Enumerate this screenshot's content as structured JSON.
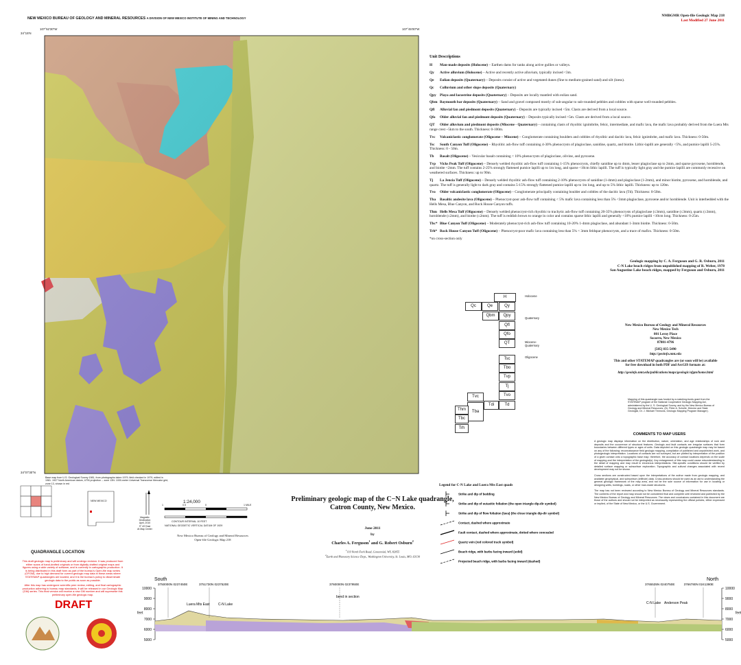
{
  "header": {
    "bureau": "NEW MEXICO BUREAU OF GEOLOGY AND MINERAL RESOURCES",
    "division": "A DIVISION OF NEW MEXICO INSTITUTE OF MINING AND TECHNOLOGY",
    "series": "NMBGMR Open-file Geologic Map 218",
    "modified": "Last Modified 27 June 2011"
  },
  "map_frame": {
    "corners": [
      "34°15'N",
      "107°52'30\"W",
      "107°45'00\"W",
      "34°07'30\"N"
    ],
    "base_note": "Base map from U.S. Geological Survey 1981, from photographs taken 1979, field checked in 1979, edited in 1981. 1927 North American datum, UTM projection -- zone 13N. 1000-meter Universal Transverse Mercator grid, zone 13, shown in red"
  },
  "units": {
    "title": "Unit Descriptions",
    "items": [
      {
        "code": "H",
        "name": "Man-made deposits (Holocene)",
        "text": " – Earthen dams for tanks along active gullies or valleys."
      },
      {
        "code": "Qy",
        "name": "Active alluvium (Holocene)",
        "text": " – Active and recently active alluvium, typically incised <3m."
      },
      {
        "code": "Qe",
        "name": "Eolian deposits (Quaternary)",
        "text": " – Deposits consist of active and vegetated dunes (fine to medium-grained sand) and silt (loess)."
      },
      {
        "code": "Qc",
        "name": "Colluvium and other slope deposits (Quaternary)",
        "text": ""
      },
      {
        "code": "Qpy",
        "name": "Playa and lacustrine deposits (Quaternary)",
        "text": " – Deposits are locally mantled with eolian sand."
      },
      {
        "code": "Qbm",
        "name": "Baymouth bar deposits (Quaternary)",
        "text": " – Sand and gravel composed mostly of sub-angular to sub-rounded pebbles and cobbles with sparse well-rounded pebbles."
      },
      {
        "code": "Qfl",
        "name": "Alluvial fan and piedmont deposits (Quaternary)",
        "text": " – Deposits are typically incised <5m. Clasts are derived from a local source."
      },
      {
        "code": "Qfo",
        "name": "Older alluvial fan and piedmont deposits (Quaternary)",
        "text": " – Deposits typically incised >5m. Clasts are derived from a local source."
      },
      {
        "code": "QT",
        "name": "Older alluvium and piedmont deposits (Miocene - Quaternary)",
        "text": " – containing clasts of rhyolitic ignimbrite, felsic, intermediate, and mafic lava, the mafic lava probably derived from the Luera Mts range crest ~5km to the south. Thickness: 0-100m."
      },
      {
        "code": "Tvc",
        "name": "Volcaniclastic conglomerate (Oligocene – Miocene)",
        "text": " – Conglomerate containing boulders and cobbles of rhyolitic and dacitic lava, felsic ignimbrite, and mafic lava. Thickness: 0-50m."
      },
      {
        "code": "Tsc",
        "name": "South Canyon Tuff (Oligocene)",
        "text": " – Rhyolitic ash-flow tuff containing 4-30% phenocrysts of plagioclase, sanidine, quartz, and biotite. Lithic-lapilli are generally <5%, and pumice lapilli 5-25%. Thickness: 0 - 50m."
      },
      {
        "code": "Tb",
        "name": "Basalt (Oligocene)",
        "text": " – Vesicular basalt containing < 10% phenocrysts of plagioclase, olivine, and pyroxene."
      },
      {
        "code": "Tvp",
        "name": "Vicks Peak Tuff (Oligocene)",
        "text": " – Densely welded rhyolitic ash-flow tuff containing 1-15% phenocrysts, chiefly sanidine up to 4mm, lesser plagioclase up to 2mm, and sparse pyroxene, hornblende, and biotite <2mm. The tuff contains 2-25% strongly flattened pumice lapilli up to 1m long, and sparse <10cm lithic lapilli. The tuff is typically light gray and the pumice lapilli are commonly recessive on weathered surfaces. Thickness: up to 90m."
      },
      {
        "code": "Tj",
        "name": "La Jencia Tuff (Oligocene)",
        "text": " – Densely welded rhyolitic ash-flow tuff containing 2-10% phenocrysts of sanidine (1-4mm) and plagioclase (1-2mm), and minor biotite, pyroxene, and hornblende, and quartz. The tuff is generally light to dark gray and contains 5-15% strongly flattened pumice lapilli up to 1m long, and up to 5% lithic lapilli. Thickness: up to 120m."
      },
      {
        "code": "Tvo",
        "name": "Older volcaniclastic conglomerate (Oligocene)",
        "text": " – Conglomerate principally containing boulder and cobbles of the dacitic lava (Td). Thickness: 0-50m."
      },
      {
        "code": "Tba",
        "name": "Basaltic andesite lava (Oligocene)",
        "text": " – Phenocryst-poor ash-flow tuff containing < 5% mafic lava containing less than 5% <3mm plagioclase, pyroxene and/or hornblende. Unit is interbedded with the Hells Mesa, Blue Canyon, and Rock House Canyon tuffs."
      },
      {
        "code": "Thm",
        "name": "Hells Mesa Tuff (Oligocene)",
        "text": " – Densely welded phenocryst-rich rhyolitic to trachytic ash-flow tuff containing 20-35% phenocrysts of plagioclase (≤3mm), sanidine (≤3mm), quartz (≤3mm), hornblende (≤2mm), and biotite (≤2mm). The tuff is reddish brown to orange in color and contains sparse lithic lapilli and generally <10% pumice lapilli <10cm long. Thickness: 0-25m."
      },
      {
        "code": "Tbc*",
        "name": "Blue Canyon Tuff (Oligocene)",
        "text": " – Moderately phenocryst-rich ash-flow tuff containing 10-20% 1-4mm plagioclase, and abundant 1-3mm biotite. Thickness: 0-50m."
      },
      {
        "code": "Trh*",
        "name": "Rock House Canyon Tuff (Oligocene)",
        "text": " – Phenocryst-poor mafic lava containing less than 5% < 3mm feldspar phenocrysts, and a trace of mafics. Thickness: 0-50m."
      }
    ],
    "footnote": "*on cross-section only"
  },
  "credits": [
    "Geologic mapping by C. A. Ferguson and G. R. Osburn, 2011",
    "C-N Lake beach ridges from unpublished mapping of R. Weber, 1978",
    "San Augustine Lake beach ridges, mapped by Ferguson and Osburn, 2011"
  ],
  "correlation": {
    "boxes": [
      "H",
      "Qc",
      "Qe",
      "Qy",
      "Qbm",
      "Qpy",
      "Qfl",
      "Qfo",
      "QT",
      "Tsc",
      "Tbo",
      "Tvp",
      "Tj",
      "Tvo",
      "Tvc",
      "Tdi",
      "Td",
      "Tba",
      "Thm",
      "Tbc",
      "Trh"
    ],
    "ages": [
      "Holocene",
      "Quaternary",
      "Miocene-Quaternary",
      "Oligocene"
    ]
  },
  "publisher": {
    "lines": [
      "New Mexico Bureau of Geology and Mineral Resources",
      "New Mexico Tech",
      "801 Leroy Place",
      "Socorro, New Mexico",
      "87801-4796",
      "[505] 835-5490",
      "http://geoinfo.nmt.edu"
    ],
    "availability": [
      "This and other STATEMAP quadrangles are (or soon will be) available",
      "for free download in both PDF and ArcGIS formats at:"
    ],
    "url": "http://geoinfo.nmt.edu/publications/maps/geologic/ofgm/home.html"
  },
  "funding": "Mapping of this quadrangle was funded by a matching-funds grant from the STATEMAP program of the National Cooperative Geologic Mapping Act, administered by the U. S. Geological Survey, and by the New Mexico Bureau of Geology and Mineral Resources, (Dr. Peter A. Scholle, Director and State Geologist, Dr. J. Michael Timmons, Geologic Mapping Program Manager).",
  "comments": {
    "title": "COMMENTS TO MAP USERS",
    "paragraphs": [
      "A geologic map displays information on the distribution, nature, orientation, and age relationships of rock and deposits and the occurrence of structural features. Geologic and fault contacts are irregular surfaces that form boundaries between different types or ages of units. Data depicted on this geologic quadrangle map may be based on any of the following: reconnaissance field geologic mapping, compilation of published and unpublished work, and photogeologic interpretation. Locations of contacts are not surveyed, but are plotted by interpretation of the position of a given contact onto a topographic base map; therefore, the accuracy of contact locations depends on the scale of mapping and the interpretation of the geologist(s). Any enlargement of this map could cause misunderstanding in the detail of mapping and may result in erroneous interpretations. Site-specific conditions should be verified by detailed surface mapping or subsurface exploration. Topographic and cultural changes associated with recent development may not be shown.",
      "Cross sections are constructed based upon the interpretations of the author made from geologic mapping, and available geophysical, and subsurface (drillhole) data. Cross-sections should be used as an aid to understanding the general geologic framework of the map area, and not be the sole source of information for use in locating or designing wells, buildings, roads, or other man-made structures.",
      "The map has not been reviewed according to New Mexico Bureau of Geology and Mineral Resources standards. The contents of the report and map should not be considered final and complete until reviewed and published by the New Mexico Bureau of Geology and Mineral Resources. The views and conclusions contained in this document are those of the authors and should not be interpreted as necessarily representing the official policies, either expressed or implied, of the State of New Mexico, or the U.S. Government."
    ]
  },
  "legend": {
    "title": "Legend for C-N Lake and Luera Mts East quads",
    "items": [
      "Strike and dip of bedding",
      "Strike and dip of eutaxitic foliation (the open triangle dip-dir symbol)",
      "Strike and dip of flow foliation (lava) (the close triangle dip-dir symbol)",
      "Contact, dashed where approximate",
      "Fault contact, dashed where approximate, dotted where concealed",
      "Quartz vein (red colored track symbol)",
      "Beach ridge, with barbs facing inward (solid)",
      "Projected beach ridge, with barbs facing inward (dashed)"
    ]
  },
  "title_block": {
    "title": "Preliminary geologic map of the C−N Lake quadrangle, Catron County, New Mexico.",
    "date": "June 2011",
    "by": "by",
    "authors": [
      {
        "name": "Charles A. Ferguson",
        "note": "1"
      },
      {
        "name": "and G. Robert Osburn",
        "note": "2"
      }
    ],
    "affiliations": [
      {
        "note": "1",
        "text": "119 North Fork Road, Centennial, WY, 82055"
      },
      {
        "note": "2",
        "text": "Earth and Planetary Science Dept., Washington University, St. Louis, MO, 63130"
      }
    ]
  },
  "scale": {
    "ratio": "1:24,000",
    "miles": [
      "1",
      "0.5",
      "0",
      "1 MILE"
    ],
    "contour": "CONTOUR INTERVAL 10 FEET",
    "datum": "NATIONAL GEODETIC VERTICAL DATUM OF 1929",
    "declination": [
      "Magnetic Declination",
      "April, 2010",
      "9° 43' East",
      "At Map Center"
    ],
    "publisher": "New Mexico Bureau of Geology and Mineral Resources",
    "series": "Open-file Geologic Map 218"
  },
  "location": {
    "state": "NEW MEXICO",
    "title": "QUADRANGLE LOCATION"
  },
  "draft": {
    "paragraphs": [
      "This draft geologic map is preliminary and will undergo revision. It was produced from either scans of hand-drafted originals or from digitally drafted original maps and figures using a wide variety of software, and is currently in cartographic production. It is being distributed in this draft form as part of the bureau's Open-file map series (OFGM), due to high demand for current geologic map data in these areas where STATEMAP quadrangles are located, and it is the bureau's policy to disseminate geologic data to the public as soon as possible.",
      "After this map has undergone scientific peer review, editing, and final cartographic production adhering to bureau map standards, it will be released in our Geologic Map (GM) series. This final version will receive a new GM number and will supersede this preliminary open-file geologic map."
    ],
    "label": "DRAFT"
  },
  "cross_section": {
    "south": "South",
    "north": "North",
    "points": [
      {
        "label": "3750000N 0237450E"
      },
      {
        "label": "3751730N 0237520E"
      },
      {
        "label": "3760000N 0237950E"
      },
      {
        "label": "3765535N 0240750E"
      },
      {
        "label": "3766780N 0241380E"
      }
    ],
    "places": [
      "Luera Mts East",
      "C-N Lake",
      "bend in section",
      "C-N Lake",
      "Anderson Peak"
    ],
    "elevation_ticks": [
      10000,
      9000,
      8000,
      7000,
      6000,
      5000
    ],
    "unit": "feet"
  }
}
